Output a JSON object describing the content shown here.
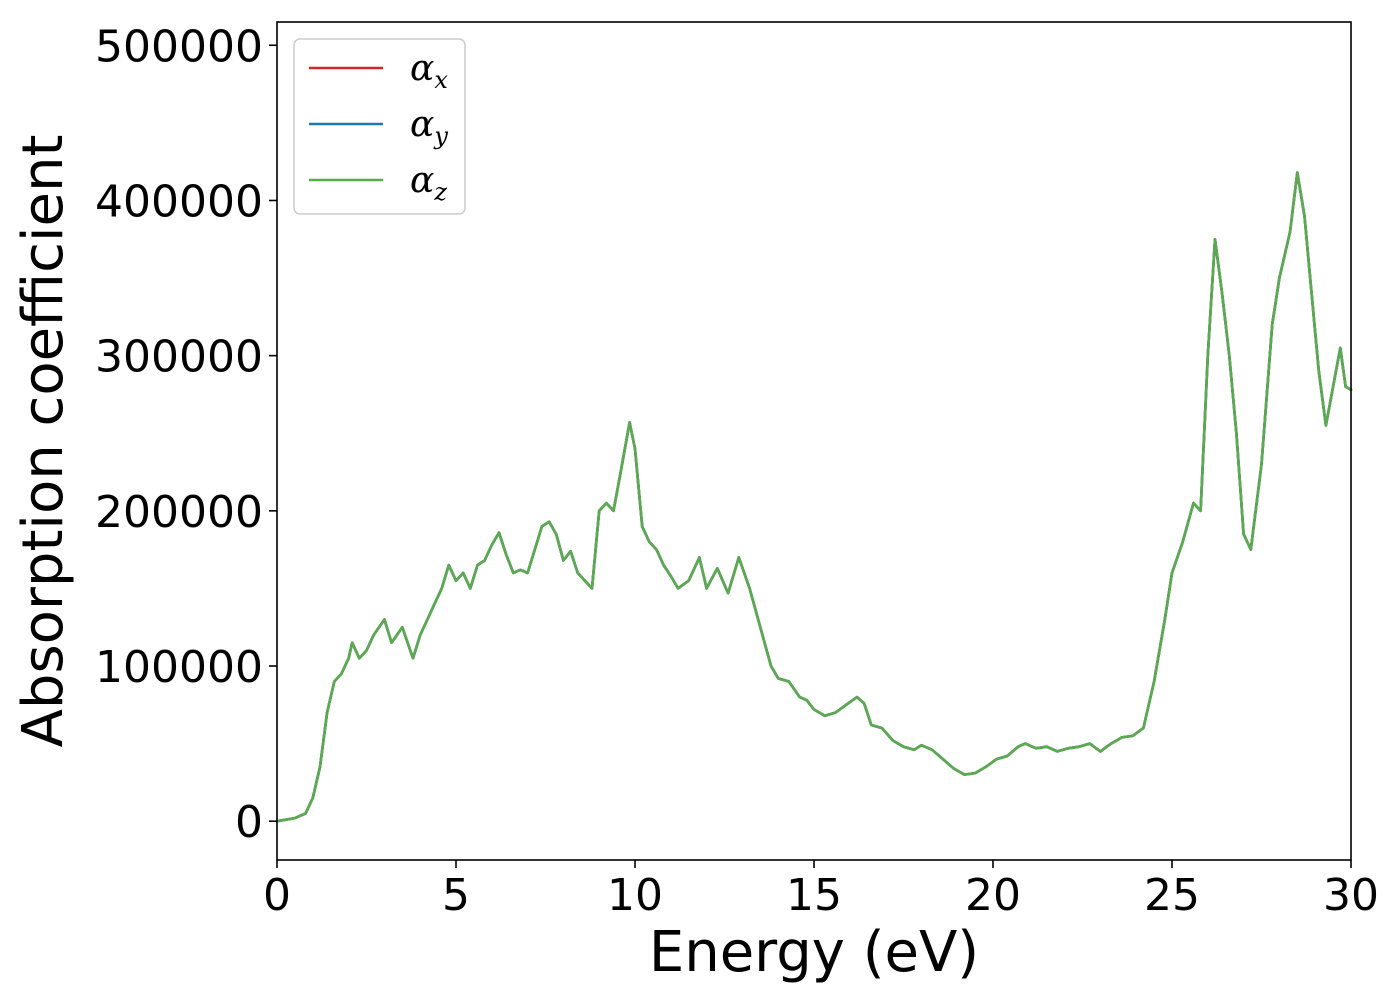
{
  "chart_data": {
    "type": "line",
    "title": "",
    "xlabel": "Energy (eV)",
    "ylabel": "Absorption coefficient",
    "xlim": [
      0,
      30
    ],
    "ylim": [
      -25000,
      515000
    ],
    "xticks": [
      0,
      5,
      10,
      15,
      20,
      25,
      30
    ],
    "xtick_labels": [
      "0",
      "5",
      "10",
      "15",
      "20",
      "25",
      "30"
    ],
    "yticks": [
      0,
      100000,
      200000,
      300000,
      400000,
      500000
    ],
    "ytick_labels": [
      "0",
      "100000",
      "200000",
      "300000",
      "400000",
      "500000"
    ],
    "grid": false,
    "legend_position": "top-left",
    "series": [
      {
        "name": "α_x",
        "legend_base": "α",
        "legend_sub": "x",
        "color": "#d62728",
        "x": [
          0,
          0.5,
          0.8,
          1.0,
          1.2,
          1.4,
          1.6,
          1.8,
          2.0,
          2.1,
          2.3,
          2.5,
          2.7,
          3.0,
          3.2,
          3.5,
          3.8,
          4.0,
          4.2,
          4.4,
          4.6,
          4.8,
          5.0,
          5.2,
          5.4,
          5.6,
          5.8,
          6.0,
          6.2,
          6.4,
          6.6,
          6.8,
          7.0,
          7.2,
          7.4,
          7.6,
          7.8,
          8.0,
          8.2,
          8.4,
          8.6,
          8.8,
          9.0,
          9.2,
          9.4,
          9.6,
          9.85,
          10.0,
          10.2,
          10.4,
          10.6,
          10.8,
          11.0,
          11.2,
          11.5,
          11.8,
          12.0,
          12.3,
          12.6,
          12.9,
          13.2,
          13.5,
          13.8,
          14.0,
          14.3,
          14.6,
          14.8,
          15.0,
          15.3,
          15.6,
          15.9,
          16.2,
          16.4,
          16.6,
          16.9,
          17.2,
          17.5,
          17.8,
          18.0,
          18.3,
          18.6,
          18.9,
          19.2,
          19.5,
          19.8,
          20.1,
          20.4,
          20.7,
          20.9,
          21.2,
          21.5,
          21.8,
          22.1,
          22.4,
          22.7,
          23.0,
          23.3,
          23.6,
          23.9,
          24.2,
          24.5,
          24.8,
          25.0,
          25.3,
          25.6,
          25.8,
          26.0,
          26.2,
          26.4,
          26.6,
          26.8,
          27.0,
          27.2,
          27.5,
          27.8,
          28.0,
          28.3,
          28.5,
          28.7,
          28.9,
          29.1,
          29.3,
          29.5,
          29.7,
          29.85,
          30.0
        ],
        "y": [
          0,
          2000,
          5000,
          15000,
          35000,
          70000,
          90000,
          95000,
          105000,
          115000,
          105000,
          110000,
          120000,
          130000,
          115000,
          125000,
          105000,
          120000,
          130000,
          140000,
          150000,
          165000,
          155000,
          160000,
          150000,
          165000,
          168000,
          178000,
          186000,
          172000,
          160000,
          162000,
          160000,
          175000,
          190000,
          193000,
          185000,
          168000,
          174000,
          160000,
          155000,
          150000,
          200000,
          205000,
          200000,
          225000,
          257000,
          240000,
          190000,
          180000,
          175000,
          165000,
          158000,
          150000,
          155000,
          170000,
          150000,
          163000,
          147000,
          170000,
          150000,
          125000,
          100000,
          92000,
          90000,
          80000,
          78000,
          72000,
          68000,
          70000,
          75000,
          80000,
          76000,
          62000,
          60000,
          52000,
          48000,
          46000,
          49000,
          46000,
          40000,
          34000,
          30000,
          31000,
          35000,
          40000,
          42000,
          48000,
          50000,
          47000,
          48000,
          45000,
          47000,
          48000,
          50000,
          45000,
          50000,
          54000,
          55000,
          60000,
          90000,
          130000,
          160000,
          180000,
          205000,
          200000,
          300000,
          375000,
          340000,
          300000,
          250000,
          185000,
          175000,
          230000,
          320000,
          350000,
          380000,
          418000,
          390000,
          340000,
          290000,
          255000,
          280000,
          305000,
          280000,
          278000
        ]
      },
      {
        "name": "α_y",
        "legend_base": "α",
        "legend_sub": "y",
        "color": "#1f77b4",
        "x": [
          0,
          0.5,
          0.8,
          1.0,
          1.2,
          1.4,
          1.6,
          1.8,
          2.0,
          2.1,
          2.3,
          2.5,
          2.7,
          3.0,
          3.2,
          3.5,
          3.8,
          4.0,
          4.2,
          4.4,
          4.6,
          4.8,
          5.0,
          5.2,
          5.4,
          5.6,
          5.8,
          6.0,
          6.2,
          6.4,
          6.6,
          6.8,
          7.0,
          7.2,
          7.4,
          7.6,
          7.8,
          8.0,
          8.2,
          8.4,
          8.6,
          8.8,
          9.0,
          9.2,
          9.4,
          9.6,
          9.85,
          10.0,
          10.2,
          10.4,
          10.6,
          10.8,
          11.0,
          11.2,
          11.5,
          11.8,
          12.0,
          12.3,
          12.6,
          12.9,
          13.2,
          13.5,
          13.8,
          14.0,
          14.3,
          14.6,
          14.8,
          15.0,
          15.3,
          15.6,
          15.9,
          16.2,
          16.4,
          16.6,
          16.9,
          17.2,
          17.5,
          17.8,
          18.0,
          18.3,
          18.6,
          18.9,
          19.2,
          19.5,
          19.8,
          20.1,
          20.4,
          20.7,
          20.9,
          21.2,
          21.5,
          21.8,
          22.1,
          22.4,
          22.7,
          23.0,
          23.3,
          23.6,
          23.9,
          24.2,
          24.5,
          24.8,
          25.0,
          25.3,
          25.6,
          25.8,
          26.0,
          26.2,
          26.4,
          26.6,
          26.8,
          27.0,
          27.2,
          27.5,
          27.8,
          28.0,
          28.3,
          28.5,
          28.7,
          28.9,
          29.1,
          29.3,
          29.5,
          29.7,
          29.85,
          30.0
        ],
        "y": [
          0,
          2000,
          5000,
          15000,
          35000,
          70000,
          90000,
          95000,
          105000,
          115000,
          105000,
          110000,
          120000,
          130000,
          115000,
          125000,
          105000,
          120000,
          130000,
          140000,
          150000,
          165000,
          155000,
          160000,
          150000,
          165000,
          168000,
          178000,
          186000,
          172000,
          160000,
          162000,
          160000,
          175000,
          190000,
          193000,
          185000,
          168000,
          174000,
          160000,
          155000,
          150000,
          200000,
          205000,
          200000,
          225000,
          257000,
          240000,
          190000,
          180000,
          175000,
          165000,
          158000,
          150000,
          155000,
          170000,
          150000,
          163000,
          147000,
          170000,
          150000,
          125000,
          100000,
          92000,
          90000,
          80000,
          78000,
          72000,
          68000,
          70000,
          75000,
          80000,
          76000,
          62000,
          60000,
          52000,
          48000,
          46000,
          49000,
          46000,
          40000,
          34000,
          30000,
          31000,
          35000,
          40000,
          42000,
          48000,
          50000,
          47000,
          48000,
          45000,
          47000,
          48000,
          50000,
          45000,
          50000,
          54000,
          55000,
          60000,
          90000,
          130000,
          160000,
          180000,
          205000,
          200000,
          300000,
          375000,
          340000,
          300000,
          250000,
          185000,
          175000,
          230000,
          320000,
          350000,
          380000,
          418000,
          390000,
          340000,
          290000,
          255000,
          280000,
          305000,
          280000,
          278000
        ]
      },
      {
        "name": "α_z",
        "legend_base": "α",
        "legend_sub": "z",
        "color": "#5aaa50",
        "x": [
          0,
          0.5,
          0.8,
          1.0,
          1.2,
          1.4,
          1.6,
          1.8,
          2.0,
          2.1,
          2.3,
          2.5,
          2.7,
          3.0,
          3.2,
          3.5,
          3.8,
          4.0,
          4.2,
          4.4,
          4.6,
          4.8,
          5.0,
          5.2,
          5.4,
          5.6,
          5.8,
          6.0,
          6.2,
          6.4,
          6.6,
          6.8,
          7.0,
          7.2,
          7.4,
          7.6,
          7.8,
          8.0,
          8.2,
          8.4,
          8.6,
          8.8,
          9.0,
          9.2,
          9.4,
          9.6,
          9.85,
          10.0,
          10.2,
          10.4,
          10.6,
          10.8,
          11.0,
          11.2,
          11.5,
          11.8,
          12.0,
          12.3,
          12.6,
          12.9,
          13.2,
          13.5,
          13.8,
          14.0,
          14.3,
          14.6,
          14.8,
          15.0,
          15.3,
          15.6,
          15.9,
          16.2,
          16.4,
          16.6,
          16.9,
          17.2,
          17.5,
          17.8,
          18.0,
          18.3,
          18.6,
          18.9,
          19.2,
          19.5,
          19.8,
          20.1,
          20.4,
          20.7,
          20.9,
          21.2,
          21.5,
          21.8,
          22.1,
          22.4,
          22.7,
          23.0,
          23.3,
          23.6,
          23.9,
          24.2,
          24.5,
          24.8,
          25.0,
          25.3,
          25.6,
          25.8,
          26.0,
          26.2,
          26.4,
          26.6,
          26.8,
          27.0,
          27.2,
          27.5,
          27.8,
          28.0,
          28.3,
          28.5,
          28.7,
          28.9,
          29.1,
          29.3,
          29.5,
          29.7,
          29.85,
          30.0
        ],
        "y": [
          0,
          2000,
          5000,
          15000,
          35000,
          70000,
          90000,
          95000,
          105000,
          115000,
          105000,
          110000,
          120000,
          130000,
          115000,
          125000,
          105000,
          120000,
          130000,
          140000,
          150000,
          165000,
          155000,
          160000,
          150000,
          165000,
          168000,
          178000,
          186000,
          172000,
          160000,
          162000,
          160000,
          175000,
          190000,
          193000,
          185000,
          168000,
          174000,
          160000,
          155000,
          150000,
          200000,
          205000,
          200000,
          225000,
          257000,
          240000,
          190000,
          180000,
          175000,
          165000,
          158000,
          150000,
          155000,
          170000,
          150000,
          163000,
          147000,
          170000,
          150000,
          125000,
          100000,
          92000,
          90000,
          80000,
          78000,
          72000,
          68000,
          70000,
          75000,
          80000,
          76000,
          62000,
          60000,
          52000,
          48000,
          46000,
          49000,
          46000,
          40000,
          34000,
          30000,
          31000,
          35000,
          40000,
          42000,
          48000,
          50000,
          47000,
          48000,
          45000,
          47000,
          48000,
          50000,
          45000,
          50000,
          54000,
          55000,
          60000,
          90000,
          130000,
          160000,
          180000,
          205000,
          200000,
          300000,
          375000,
          340000,
          300000,
          250000,
          185000,
          175000,
          230000,
          320000,
          350000,
          380000,
          418000,
          390000,
          340000,
          290000,
          255000,
          280000,
          305000,
          280000,
          278000
        ]
      }
    ]
  }
}
